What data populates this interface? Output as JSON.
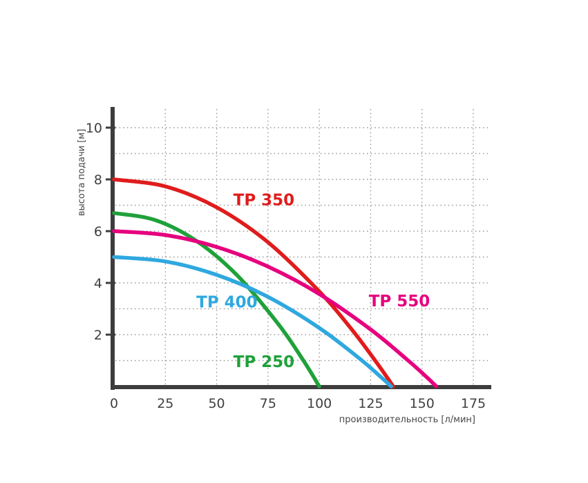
{
  "chart_data": {
    "type": "line",
    "title": "",
    "xlabel": "производительность [л/мин]",
    "ylabel": "высота подачи [м]",
    "xlim": [
      0,
      175
    ],
    "ylim": [
      0,
      10.8
    ],
    "x_ticks": [
      0,
      25,
      50,
      75,
      100,
      125,
      150,
      175
    ],
    "y_ticks": [
      2,
      4,
      6,
      8,
      10
    ],
    "grid": {
      "x_step": 25,
      "y_step": 1,
      "style": "dotted",
      "color": "#9a9a9a"
    },
    "axis_color": "#3d3d3d",
    "tick_label_color": "#3f3f3f",
    "axis_title_color": "#474747",
    "legend_position": "inline-labels",
    "series": [
      {
        "name": "TP 350",
        "color": "#e01c1c",
        "points": [
          [
            0,
            8.0
          ],
          [
            25,
            7.73
          ],
          [
            50,
            6.92
          ],
          [
            75,
            5.57
          ],
          [
            100,
            3.67
          ],
          [
            115,
            2.28
          ],
          [
            125,
            1.24
          ],
          [
            133,
            0.35
          ],
          [
            136,
            0
          ]
        ],
        "label_at": [
          73,
          7.0
        ]
      },
      {
        "name": "TP 250",
        "color": "#1fa13a",
        "points": [
          [
            0,
            6.7
          ],
          [
            20,
            6.43
          ],
          [
            40,
            5.63
          ],
          [
            60,
            4.29
          ],
          [
            80,
            2.41
          ],
          [
            92,
            1.03
          ],
          [
            100,
            0
          ]
        ],
        "label_at": [
          73,
          0.75
        ]
      },
      {
        "name": "TP 550",
        "color": "#e6007e",
        "points": [
          [
            0,
            6.0
          ],
          [
            25,
            5.85
          ],
          [
            50,
            5.39
          ],
          [
            75,
            4.63
          ],
          [
            100,
            3.57
          ],
          [
            125,
            2.2
          ],
          [
            143,
            1.02
          ],
          [
            152,
            0.38
          ],
          [
            157,
            0
          ]
        ],
        "label_at": [
          139,
          3.1
        ]
      },
      {
        "name": "TP 400",
        "color": "#2fa8df",
        "points": [
          [
            0,
            5.0
          ],
          [
            25,
            4.83
          ],
          [
            50,
            4.31
          ],
          [
            75,
            3.46
          ],
          [
            100,
            2.26
          ],
          [
            120,
            1.05
          ],
          [
            130,
            0.36
          ],
          [
            135,
            0
          ]
        ],
        "label_at": [
          55,
          3.05
        ]
      }
    ]
  }
}
